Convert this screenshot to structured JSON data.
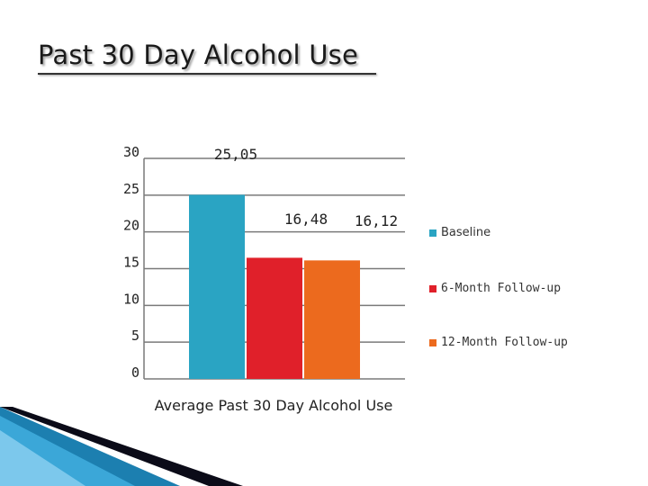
{
  "slide": {
    "title": "Past 30 Day Alcohol Use"
  },
  "colors": {
    "baseline": "#2aa4c3",
    "six_month": "#e0202a",
    "twelve_month": "#ec6a1e",
    "axis": "#7a7a7a",
    "corner_blue": "#1c7fb0",
    "corner_dark": "#0b0b18"
  },
  "chart_data": {
    "type": "bar",
    "title": "Past 30 Day Alcohol Use",
    "categories": [
      "Average Past 30 Day Alcohol Use"
    ],
    "xlabel": "Average Past 30 Day Alcohol Use",
    "ylabel": "",
    "ylim": [
      0,
      30
    ],
    "yticks": [
      "0",
      "5",
      "10",
      "15",
      "20",
      "25",
      "30"
    ],
    "grid": false,
    "legend": "right",
    "series": [
      {
        "name": "Baseline",
        "values": [
          25.05
        ],
        "label": "25,05",
        "color": "#2aa4c3"
      },
      {
        "name": "6-Month Follow-up",
        "values": [
          16.48
        ],
        "label": "16,48",
        "color": "#e0202a"
      },
      {
        "name": "12-Month Follow-up",
        "values": [
          16.12
        ],
        "label": "16,12",
        "color": "#ec6a1e"
      }
    ]
  }
}
